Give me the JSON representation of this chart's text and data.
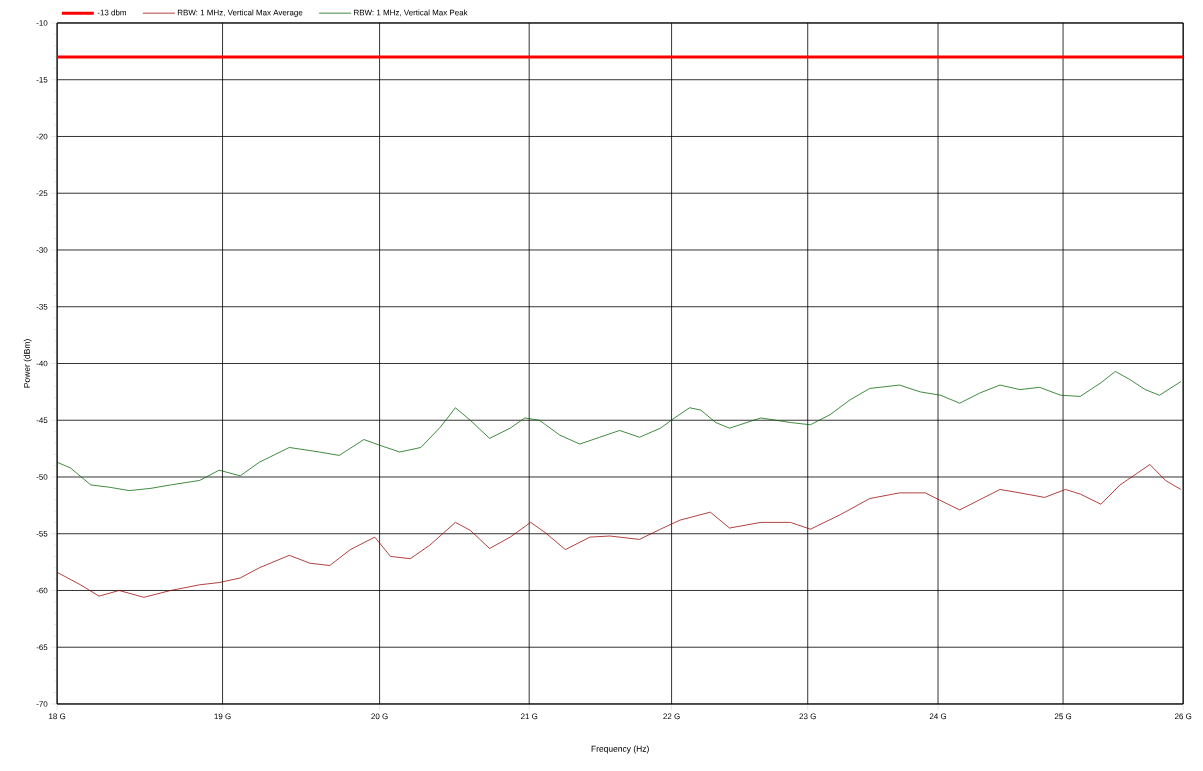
{
  "chart_data": {
    "type": "line",
    "xlabel": "Frequency (Hz)",
    "ylabel": "Power (dBm)",
    "log": "x",
    "grid": true,
    "legend": "top",
    "xlim": [
      18,
      26
    ],
    "ylim": [
      -70,
      -10
    ],
    "xticks": [
      {
        "value": 18,
        "label": "18 G"
      },
      {
        "value": 19,
        "label": "19 G"
      },
      {
        "value": 20,
        "label": "20 G"
      },
      {
        "value": 21,
        "label": "21 G"
      },
      {
        "value": 22,
        "label": "22 G"
      },
      {
        "value": 23,
        "label": "23 G"
      },
      {
        "value": 24,
        "label": "24 G"
      },
      {
        "value": 25,
        "label": "25 G"
      },
      {
        "value": 26,
        "label": "26 G"
      }
    ],
    "yticks": [
      -70,
      -65,
      -60,
      -55,
      -50,
      -45,
      -40,
      -35,
      -30,
      -25,
      -20,
      -15,
      -10
    ],
    "series": [
      {
        "name": "-13 dbm",
        "color": "#ff0000",
        "x": [
          18,
          26
        ],
        "values": [
          -13,
          -13
        ]
      },
      {
        "name": "RBW: 1 MHz, Vertical Max Average",
        "color": "#990000",
        "x": [
          18.0,
          18.14,
          18.25,
          18.37,
          18.52,
          18.68,
          18.86,
          18.98,
          19.11,
          19.23,
          19.42,
          19.55,
          19.68,
          19.81,
          19.97,
          20.07,
          20.2,
          20.33,
          20.5,
          20.6,
          20.73,
          20.87,
          21.01,
          21.11,
          21.25,
          21.42,
          21.56,
          21.77,
          21.92,
          22.06,
          22.28,
          22.42,
          22.65,
          22.87,
          23.02,
          23.25,
          23.47,
          23.7,
          23.9,
          24.06,
          24.17,
          24.33,
          24.49,
          24.65,
          24.85,
          25.02,
          25.14,
          25.31,
          25.47,
          25.72,
          25.85,
          25.98
        ],
        "values": [
          -58.4,
          -59.5,
          -60.5,
          -60.0,
          -60.6,
          -60.0,
          -59.5,
          -59.3,
          -58.9,
          -58.0,
          -56.9,
          -57.6,
          -57.8,
          -56.4,
          -55.3,
          -57.0,
          -57.2,
          -56.0,
          -54.0,
          -54.7,
          -56.3,
          -55.3,
          -54.0,
          -54.9,
          -56.4,
          -55.3,
          -55.2,
          -55.5,
          -54.6,
          -53.8,
          -53.1,
          -54.5,
          -54.0,
          -54.0,
          -54.6,
          -53.3,
          -51.9,
          -51.4,
          -51.4,
          -52.3,
          -52.9,
          -52.0,
          -51.1,
          -51.4,
          -51.8,
          -51.1,
          -51.5,
          -52.4,
          -50.7,
          -48.9,
          -50.3,
          -51.1
        ]
      },
      {
        "name": "RBW: 1 MHz, Vertical Max Peak",
        "color": "#006400",
        "x": [
          18.0,
          18.08,
          18.2,
          18.31,
          18.43,
          18.56,
          18.68,
          18.86,
          18.98,
          19.11,
          19.23,
          19.42,
          19.61,
          19.74,
          19.9,
          20.0,
          20.13,
          20.27,
          20.4,
          20.5,
          20.6,
          20.73,
          20.87,
          20.97,
          21.07,
          21.21,
          21.35,
          21.49,
          21.63,
          21.77,
          21.92,
          22.02,
          22.13,
          22.21,
          22.32,
          22.42,
          22.65,
          22.87,
          23.02,
          23.17,
          23.32,
          23.47,
          23.7,
          23.86,
          24.02,
          24.17,
          24.33,
          24.49,
          24.65,
          24.81,
          24.98,
          25.14,
          25.31,
          25.43,
          25.55,
          25.68,
          25.8,
          25.89,
          25.98
        ],
        "values": [
          -48.7,
          -49.2,
          -50.7,
          -50.9,
          -51.2,
          -51.0,
          -50.7,
          -50.3,
          -49.4,
          -49.9,
          -48.7,
          -47.4,
          -47.8,
          -48.1,
          -46.7,
          -47.2,
          -47.8,
          -47.4,
          -45.6,
          -43.9,
          -45.0,
          -46.6,
          -45.7,
          -44.8,
          -45.0,
          -46.3,
          -47.1,
          -46.5,
          -45.9,
          -46.5,
          -45.7,
          -44.8,
          -43.9,
          -44.1,
          -45.2,
          -45.7,
          -44.8,
          -45.2,
          -45.4,
          -44.5,
          -43.2,
          -42.2,
          -41.9,
          -42.5,
          -42.8,
          -43.5,
          -42.6,
          -41.9,
          -42.3,
          -42.1,
          -42.8,
          -42.9,
          -41.7,
          -40.7,
          -41.4,
          -42.3,
          -42.8,
          -42.2,
          -41.6
        ]
      }
    ]
  }
}
